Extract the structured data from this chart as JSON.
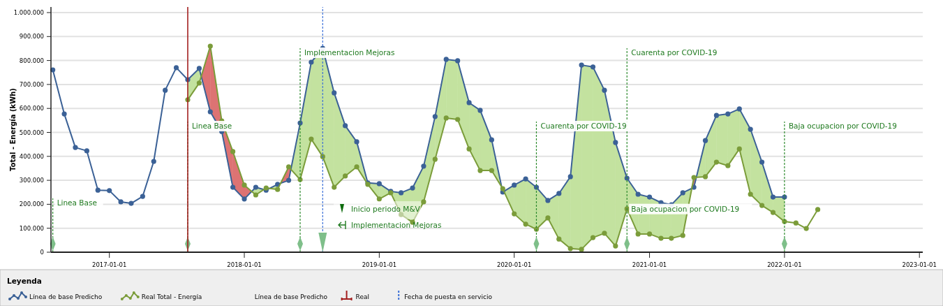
{
  "chart_data": {
    "type": "line",
    "ylabel": "Total - Energía (kWh)",
    "legend_title": "Leyenda",
    "annotations": [
      "Línea de base Predicho",
      "Inicio periodo M&V",
      "Implementacion Mejoras",
      {
        "text": "Baja ocupacion por COVID-19",
        "x": "2020-11-01",
        "y": 170000
      }
    ],
    "xlim": [
      "2016-07-27",
      "2023-01-10"
    ],
    "xticks": [
      "2017-01-01",
      "2018-01-01",
      "2019-01-01",
      "2020-01-01",
      "2021-01-01",
      "2022-01-01",
      "2023-01-01"
    ],
    "ylim": [
      0,
      1000000
    ],
    "yticks": [
      {
        "value": 0,
        "label": "0"
      },
      {
        "value": 100000,
        "label": "100.000"
      },
      {
        "value": 200000,
        "label": "200.000"
      },
      {
        "value": 300000,
        "label": "300.000"
      },
      {
        "value": 400000,
        "label": "400.000"
      },
      {
        "value": 500000,
        "label": "500.000"
      },
      {
        "value": 600000,
        "label": "600.000"
      },
      {
        "value": 700000,
        "label": "700.000"
      },
      {
        "value": 800000,
        "label": "800.000"
      },
      {
        "value": 900000,
        "label": "900.000"
      },
      {
        "value": 1000000,
        "label": "1.000.000"
      }
    ],
    "grid": "y",
    "marker": "circle",
    "legend": "bottom",
    "series": [
      {
        "name": "Línea de base Predicho",
        "color": "#3b6196",
        "x": [
          "2016-08",
          "2016-09",
          "2016-10",
          "2016-11",
          "2016-12",
          "2017-01",
          "2017-02",
          "2017-03",
          "2017-04",
          "2017-05",
          "2017-06",
          "2017-07",
          "2017-08",
          "2017-09",
          "2017-10",
          "2017-11",
          "2017-12",
          "2018-01",
          "2018-02",
          "2018-03",
          "2018-04",
          "2018-05",
          "2018-06",
          "2018-07",
          "2018-08",
          "2018-09",
          "2018-10",
          "2018-11",
          "2018-12",
          "2019-01",
          "2019-02",
          "2019-03",
          "2019-04",
          "2019-05",
          "2019-06",
          "2019-07",
          "2019-08",
          "2019-09",
          "2019-10",
          "2019-11",
          "2019-12",
          "2020-01",
          "2020-02",
          "2020-03",
          "2020-04",
          "2020-05",
          "2020-06",
          "2020-07",
          "2020-08",
          "2020-09",
          "2020-10",
          "2020-11",
          "2020-12",
          "2021-01",
          "2021-02",
          "2021-03",
          "2021-04",
          "2021-05",
          "2021-06",
          "2021-07",
          "2021-08",
          "2021-09",
          "2021-10",
          "2021-11",
          "2021-12",
          "2022-01"
        ],
        "values": [
          761000,
          577000,
          437000,
          423000,
          259000,
          257000,
          210000,
          204000,
          233000,
          379000,
          676000,
          770000,
          720000,
          767000,
          586000,
          504000,
          271000,
          222000,
          271000,
          259000,
          283000,
          300000,
          539000,
          793000,
          851000,
          665000,
          528000,
          461000,
          289000,
          286000,
          254000,
          248000,
          268000,
          359000,
          566000,
          805000,
          799000,
          624000,
          592000,
          469000,
          251000,
          280000,
          306000,
          271000,
          216000,
          245000,
          315000,
          781000,
          773000,
          676000,
          458000,
          309000,
          242000,
          230000,
          207000,
          198000,
          248000,
          271000,
          466000,
          571000,
          577000,
          598000,
          513000,
          376000,
          230000,
          230000
        ]
      },
      {
        "name": "Real Total - Energía",
        "color": "#7b9c3a",
        "x": [
          "2017-08",
          "2017-09",
          "2017-10",
          "2017-11",
          "2017-12",
          "2018-01",
          "2018-02",
          "2018-03",
          "2018-04",
          "2018-05",
          "2018-06",
          "2018-07",
          "2018-08",
          "2018-09",
          "2018-10",
          "2018-11",
          "2018-12",
          "2019-01",
          "2019-02",
          "2019-03",
          "2019-04",
          "2019-05",
          "2019-06",
          "2019-07",
          "2019-08",
          "2019-09",
          "2019-10",
          "2019-11",
          "2019-12",
          "2020-01",
          "2020-02",
          "2020-03",
          "2020-04",
          "2020-05",
          "2020-06",
          "2020-07",
          "2020-08",
          "2020-09",
          "2020-10",
          "2020-11",
          "2020-12",
          "2021-01",
          "2021-02",
          "2021-03",
          "2021-04",
          "2021-05",
          "2021-06",
          "2021-07",
          "2021-08",
          "2021-09",
          "2021-10",
          "2021-11",
          "2021-12",
          "2022-01",
          "2022-02",
          "2022-03",
          "2022-04"
        ],
        "values": [
          636000,
          706000,
          860000,
          548000,
          420000,
          280000,
          239000,
          268000,
          262000,
          356000,
          303000,
          472000,
          399000,
          271000,
          318000,
          356000,
          283000,
          222000,
          248000,
          157000,
          125000,
          210000,
          388000,
          560000,
          554000,
          431000,
          341000,
          341000,
          265000,
          160000,
          117000,
          96000,
          143000,
          55000,
          15000,
          12000,
          61000,
          79000,
          26000,
          181000,
          76000,
          76000,
          58000,
          58000,
          70000,
          312000,
          315000,
          376000,
          361000,
          431000,
          242000,
          195000,
          166000,
          128000,
          122000,
          99000,
          178000
        ]
      }
    ],
    "ref_lines": [
      {
        "axis": "x",
        "value": "2016-08-01",
        "label": "Linea Base",
        "color": "#2e8b2e",
        "line_style": "dashed"
      },
      {
        "axis": "x",
        "value": "2017-08-01",
        "label": "Linea Base",
        "color": "#2e8b2e",
        "line_style": "dashed"
      },
      {
        "axis": "x",
        "value": "2018-06-01",
        "label": "Implementacion Mejoras",
        "color": "#2e8b2e",
        "line_style": "dashed"
      },
      {
        "axis": "x",
        "value": "2020-03-01",
        "label": "Cuarenta por COVID-19",
        "color": "#2e8b2e",
        "line_style": "dashed"
      },
      {
        "axis": "x",
        "value": "2020-11-01",
        "label": "Cuarenta por COVID-19",
        "color": "#2e8b2e",
        "line_style": "dashed"
      },
      {
        "axis": "x",
        "value": "2022-01-01",
        "label": "Baja ocupacion por COVID-19",
        "color": "#2e8b2e",
        "line_style": "dashed"
      },
      {
        "axis": "x",
        "value": "2017-08-01",
        "label": "Real",
        "color": "#a31f1f",
        "line_style": "solid"
      },
      {
        "axis": "x",
        "value": "2018-08-01",
        "label": "Fecha de puesta en servicio",
        "color": "#3a6fd8",
        "line_style": "dashed"
      }
    ]
  }
}
